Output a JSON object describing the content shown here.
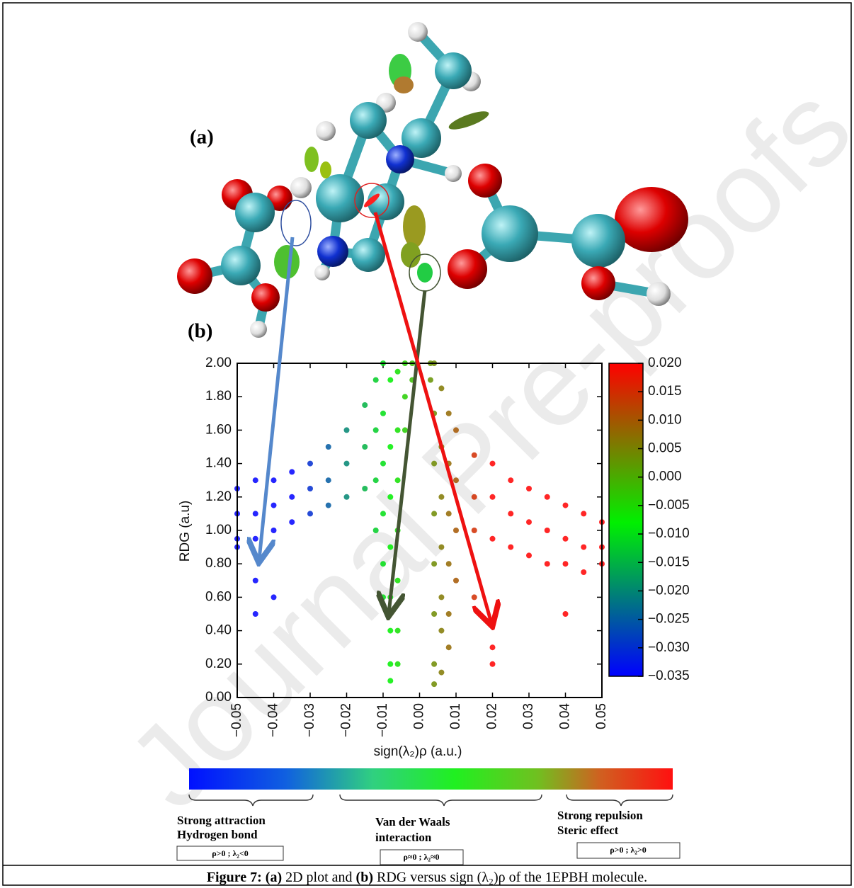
{
  "panel_labels": [
    "(a)",
    "(b)"
  ],
  "watermark": "Journal Pre-proofs",
  "chart_data": {
    "type": "scatter",
    "xlabel": "sign(λ₂)ρ (a.u.)",
    "ylabel": "RDG (a.u)",
    "xlim": [
      -0.05,
      0.05
    ],
    "ylim": [
      0,
      2
    ],
    "xticks": [
      {
        "value": -0.05,
        "label": "−0.05"
      },
      {
        "value": -0.04,
        "label": "−0.04"
      },
      {
        "value": -0.03,
        "label": "−0.03"
      },
      {
        "value": -0.02,
        "label": "−0.02"
      },
      {
        "value": -0.01,
        "label": "−0.01"
      },
      {
        "value": 0,
        "label": "0.00"
      },
      {
        "value": 0.01,
        "label": "0.01"
      },
      {
        "value": 0.02,
        "label": "0.02"
      },
      {
        "value": 0.03,
        "label": "0.03"
      },
      {
        "value": 0.04,
        "label": "0.04"
      },
      {
        "value": 0.05,
        "label": "0.05"
      }
    ],
    "yticks": [
      {
        "value": 0,
        "label": "0.00"
      },
      {
        "value": 0.2,
        "label": "0.20"
      },
      {
        "value": 0.4,
        "label": "0.40"
      },
      {
        "value": 0.6,
        "label": "0.60"
      },
      {
        "value": 0.8,
        "label": "0.80"
      },
      {
        "value": 1,
        "label": "1.00"
      },
      {
        "value": 1.2,
        "label": "1.20"
      },
      {
        "value": 1.4,
        "label": "1.40"
      },
      {
        "value": 1.6,
        "label": "1.60"
      },
      {
        "value": 1.8,
        "label": "1.80"
      },
      {
        "value": 2,
        "label": "2.00"
      }
    ],
    "colorbar": {
      "lim": [
        -0.035,
        0.02
      ],
      "ticks": [
        {
          "value": 0.02,
          "label": "0.020"
        },
        {
          "value": 0.015,
          "label": "0.015"
        },
        {
          "value": 0.01,
          "label": "0.010"
        },
        {
          "value": 0.005,
          "label": "0.005"
        },
        {
          "value": 0,
          "label": "0.000"
        },
        {
          "value": -0.005,
          "label": "−0.005"
        },
        {
          "value": -0.01,
          "label": "−0.010"
        },
        {
          "value": -0.015,
          "label": "−0.015"
        },
        {
          "value": -0.02,
          "label": "−0.020"
        },
        {
          "value": -0.025,
          "label": "−0.025"
        },
        {
          "value": -0.03,
          "label": "−0.030"
        },
        {
          "value": -0.035,
          "label": "−0.035"
        }
      ],
      "stops": [
        {
          "value": -0.035,
          "color": "#0000ff"
        },
        {
          "value": -0.008,
          "color": "#00f000"
        },
        {
          "value": 0.02,
          "color": "#ff0000"
        }
      ]
    },
    "x": [
      -0.05,
      -0.05,
      -0.05,
      -0.05,
      -0.045,
      -0.045,
      -0.045,
      -0.045,
      -0.045,
      -0.04,
      -0.04,
      -0.04,
      -0.04,
      -0.035,
      -0.035,
      -0.035,
      -0.03,
      -0.03,
      -0.03,
      -0.025,
      -0.025,
      -0.025,
      -0.02,
      -0.02,
      -0.02,
      -0.015,
      -0.015,
      -0.015,
      -0.012,
      -0.012,
      -0.012,
      -0.012,
      -0.01,
      -0.01,
      -0.01,
      -0.01,
      -0.01,
      -0.01,
      -0.008,
      -0.008,
      -0.008,
      -0.008,
      -0.008,
      -0.008,
      -0.008,
      -0.008,
      -0.006,
      -0.006,
      -0.006,
      -0.006,
      -0.006,
      -0.006,
      -0.006,
      -0.004,
      -0.004,
      -0.004,
      -0.002,
      -0.002,
      0.003,
      0.003,
      0.004,
      0.004,
      0.004,
      0.004,
      0.004,
      0.004,
      0.004,
      0.004,
      0.006,
      0.006,
      0.006,
      0.006,
      0.006,
      0.006,
      0.006,
      0.008,
      0.008,
      0.008,
      0.008,
      0.008,
      0.008,
      0.01,
      0.01,
      0.01,
      0.01,
      0.015,
      0.015,
      0.015,
      0.015,
      0.02,
      0.02,
      0.02,
      0.02,
      0.02,
      0.025,
      0.025,
      0.025,
      0.03,
      0.03,
      0.03,
      0.035,
      0.035,
      0.035,
      0.04,
      0.04,
      0.04,
      0.04,
      0.045,
      0.045,
      0.045,
      0.05,
      0.05,
      0.05
    ],
    "y": [
      1.25,
      1.1,
      0.95,
      0.9,
      1.3,
      1.1,
      0.95,
      0.7,
      0.5,
      1.3,
      1.15,
      1.0,
      0.6,
      1.35,
      1.2,
      1.05,
      1.4,
      1.25,
      1.1,
      1.5,
      1.3,
      1.15,
      1.6,
      1.4,
      1.2,
      1.75,
      1.5,
      1.25,
      1.9,
      1.6,
      1.3,
      1.0,
      2.0,
      1.7,
      1.4,
      1.1,
      0.8,
      0.6,
      1.9,
      1.5,
      1.2,
      0.9,
      0.6,
      0.4,
      0.2,
      0.1,
      1.95,
      1.6,
      1.3,
      1.0,
      0.7,
      0.4,
      0.2,
      2.0,
      1.8,
      1.6,
      2.0,
      1.9,
      2.0,
      1.9,
      2.0,
      1.7,
      1.4,
      1.1,
      0.8,
      0.5,
      0.2,
      0.08,
      1.85,
      1.5,
      1.2,
      0.9,
      0.6,
      0.4,
      0.15,
      1.7,
      1.4,
      1.1,
      0.8,
      0.5,
      0.3,
      1.6,
      1.3,
      1.0,
      0.7,
      1.45,
      1.2,
      1.0,
      0.6,
      1.4,
      1.2,
      0.95,
      0.3,
      0.2,
      1.3,
      1.1,
      0.9,
      1.25,
      1.05,
      0.85,
      1.2,
      1.0,
      0.8,
      1.15,
      0.95,
      0.8,
      0.5,
      1.1,
      0.9,
      0.75,
      1.05,
      0.9,
      0.8
    ]
  },
  "legend_bar": {
    "groups": [
      {
        "lines": [
          "Strong attraction",
          "Hydrogen bond"
        ],
        "condition": "ρ>0 ; λ₂<0"
      },
      {
        "lines": [
          "Van der Waals",
          "interaction"
        ],
        "condition": "ρ≈0 ; λ₂≈0"
      },
      {
        "lines": [
          "Strong repulsion",
          "Steric effect"
        ],
        "condition": "ρ>0 ; λ₂>0"
      }
    ]
  },
  "caption": {
    "parts": [
      "Figure 7:",
      "(a)",
      "2D plot and",
      "(b)",
      "RDG versus sign (λ₂)ρ of the 1EPBH molecule."
    ]
  }
}
